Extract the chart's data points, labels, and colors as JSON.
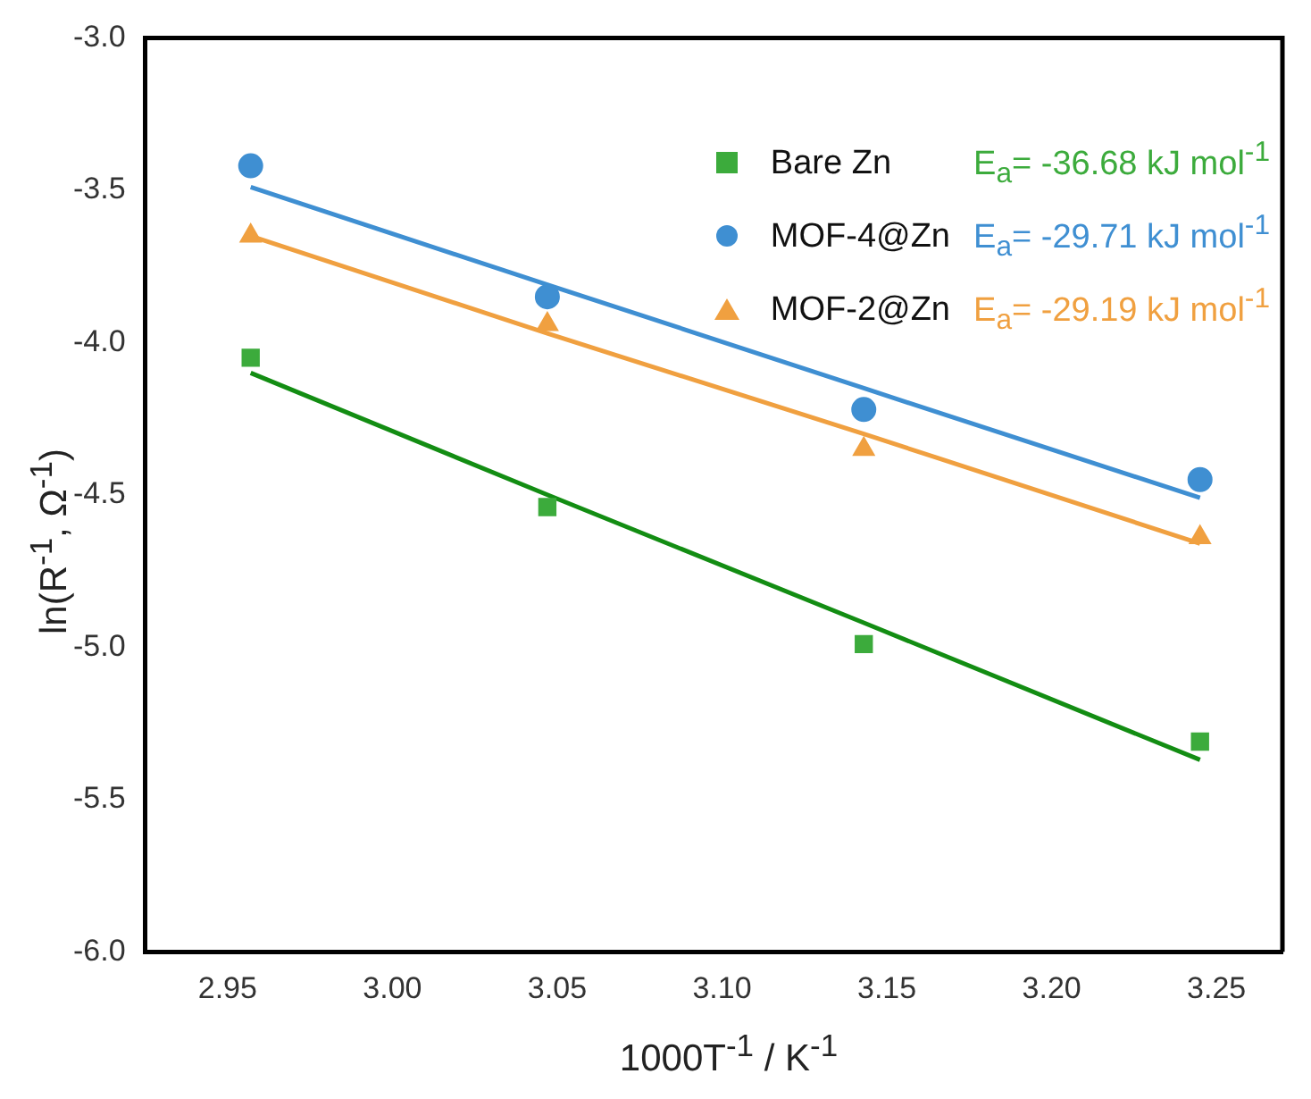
{
  "chart_data": {
    "type": "scatter",
    "xlabel": "1000T$^{-1}$ / K$^{-1}$",
    "ylabel": "ln(R$^{-1}$, Ω$^{-1}$)",
    "xlim": [
      2.925,
      3.27
    ],
    "ylim": [
      -6.0,
      -3.0
    ],
    "xticks": [
      {
        "value": 2.95,
        "label": "2.95"
      },
      {
        "value": 3.0,
        "label": "3.00"
      },
      {
        "value": 3.05,
        "label": "3.05"
      },
      {
        "value": 3.1,
        "label": "3.10"
      },
      {
        "value": 3.15,
        "label": "3.15"
      },
      {
        "value": 3.2,
        "label": "3.20"
      },
      {
        "value": 3.25,
        "label": "3.25"
      }
    ],
    "yticks": [
      {
        "value": -6.0,
        "label": "-6.0"
      },
      {
        "value": -5.5,
        "label": "-5.5"
      },
      {
        "value": -5.0,
        "label": "-5.0"
      },
      {
        "value": -4.5,
        "label": "-4.5"
      },
      {
        "value": -4.0,
        "label": "-4.0"
      },
      {
        "value": -3.5,
        "label": "-3.5"
      },
      {
        "value": -3.0,
        "label": "-3.0"
      }
    ],
    "x": [
      2.957,
      3.047,
      3.143,
      3.245
    ],
    "series": [
      {
        "name": "Bare Zn",
        "color": "#3cab3c",
        "marker": "square",
        "values": [
          -4.05,
          -4.54,
          -4.99,
          -5.31
        ]
      },
      {
        "name": "MOF-4@Zn",
        "color": "#3f8fd2",
        "marker": "circle",
        "values": [
          -3.42,
          -3.85,
          -4.22,
          -4.45
        ]
      },
      {
        "name": "MOF-2@Zn",
        "color": "#f0a040",
        "marker": "triangle",
        "values": [
          -3.65,
          -3.94,
          -4.35,
          -4.64
        ]
      },
      {
        "type": "line",
        "color": "#138d13",
        "values": [
          -4.1,
          -4.5,
          -4.92,
          -5.37
        ]
      },
      {
        "type": "line",
        "color": "#3f8fd2",
        "values": [
          -3.49,
          -3.81,
          -4.15,
          -4.51
        ]
      },
      {
        "type": "line",
        "color": "#f0a040",
        "values": [
          -3.65,
          -3.97,
          -4.3,
          -4.66
        ]
      }
    ],
    "annotations": [
      "E$_{a}$= -36.68 kJ mol$^{-1}$",
      "E$_{a}$= -29.71 kJ mol$^{-1}$",
      "E$_{a}$= -29.19 kJ mol$^{-1}$"
    ],
    "legend": "top right",
    "grid": false
  }
}
